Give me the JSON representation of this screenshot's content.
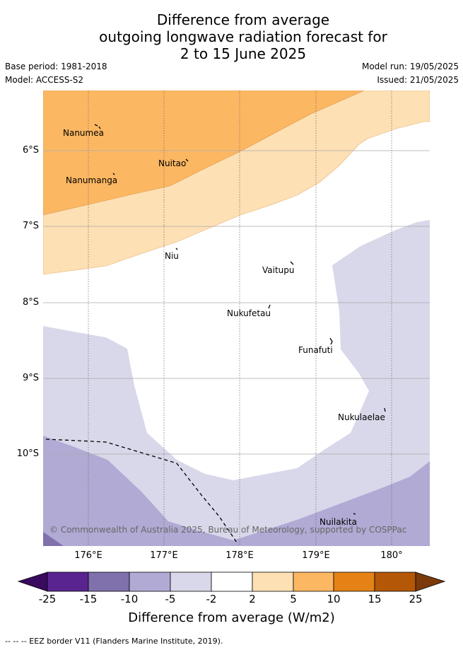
{
  "title_lines": [
    "Difference from average",
    "outgoing longwave radiation forecast for",
    "2 to 15 June 2025"
  ],
  "meta": {
    "base_period": "Base period: 1981-2018",
    "model": "Model: ACCESS-S2",
    "model_run": "Model run: 19/05/2025",
    "issued": "Issued: 21/05/2025"
  },
  "lat_labels": [
    "6°S",
    "7°S",
    "8°S",
    "9°S",
    "10°S"
  ],
  "lon_labels": [
    "176°E",
    "177°E",
    "178°E",
    "179°E",
    "180°"
  ],
  "places": {
    "nanumea": "Nanumea",
    "nuitao": "Nuitao",
    "nanumanga": "Nanumanga",
    "niu": "Niu",
    "vaitupu": "Vaitupu",
    "nukufetau": "Nukufetau",
    "funafuti": "Funafuti",
    "nukulaelae": "Nukulaelae",
    "nuilakita": "Nuilakita"
  },
  "copyright": "© Commonwealth of Australia 2025, Bureau of Meteorology, supported by COSPPac",
  "colorbar": {
    "ticks": [
      "-25",
      "-15",
      "-10",
      "-5",
      "-2",
      "2",
      "5",
      "10",
      "15",
      "25"
    ],
    "colors": [
      "#5a2490",
      "#8070ac",
      "#b0aad4",
      "#d8d8ea",
      "#ffffff",
      "#fde0b4",
      "#fcb762",
      "#e48216",
      "#b45706"
    ],
    "extend_low": "#3a0a5e",
    "extend_high": "#7a3a0c",
    "title": "Difference from average (W/m2)"
  },
  "footer": "--  --  -- EEZ border V11 (Flanders Marine Institute, 2019)."
}
